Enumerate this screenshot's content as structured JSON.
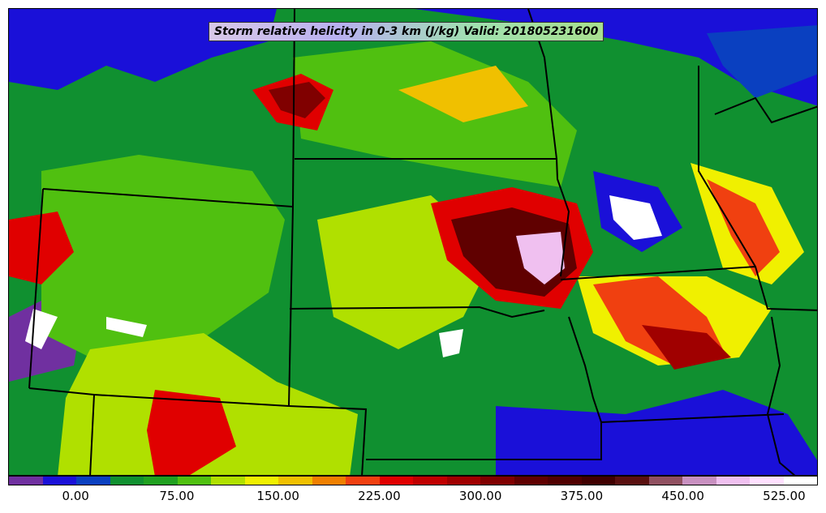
{
  "title": "Storm relative helicity in 0-3 km (J/kg) Valid: 201805231600",
  "colorbar": {
    "colors": [
      "#7030a0",
      "#1a10d8",
      "#0a40c0",
      "#109030",
      "#20a020",
      "#50c010",
      "#b0e000",
      "#f0f000",
      "#f0c000",
      "#f08000",
      "#f04010",
      "#e00000",
      "#c00000",
      "#a00000",
      "#800000",
      "#600000",
      "#500000",
      "#400000",
      "#5a1010",
      "#905060",
      "#c890c0",
      "#f0c0f0",
      "#ffe0ff",
      "#ffffff"
    ],
    "ticks": [
      "0.00",
      "75.00",
      "150.00",
      "225.00",
      "300.00",
      "375.00",
      "450.00",
      "525.00"
    ]
  }
}
